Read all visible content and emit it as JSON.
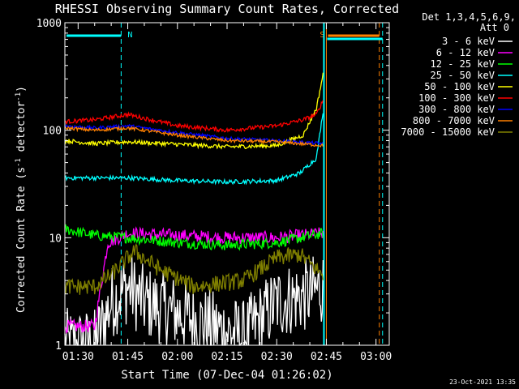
{
  "chart_data": {
    "type": "line",
    "title": "RHESSI Observing Summary Count Rates, Corrected",
    "xlabel": "Start Time (07-Dec-04 01:26:02)",
    "ylabel": "Corrected Count Rate (s",
    "ylabel_sup1": "-1",
    "ylabel_mid": " detector",
    "ylabel_sup2": "-1",
    "ylabel_end": ")",
    "y_scale": "log",
    "ylim": [
      1,
      1000
    ],
    "x_range_minutes": [
      "01:26",
      "03:04"
    ],
    "x_ticks": [
      "01:30",
      "01:45",
      "02:00",
      "02:15",
      "02:30",
      "02:45",
      "03:00"
    ],
    "y_ticks": [
      "1",
      "10",
      "100",
      "1000"
    ],
    "legend_header": [
      "Det 1,3,4,5,6,9,",
      "Att 0"
    ],
    "legend_position": "right",
    "series": [
      {
        "name": "3 - 6 keV",
        "color": "#ffffff",
        "ref": "black",
        "points": [
          [
            "01:26",
            1.0
          ],
          [
            "01:35",
            1.0
          ],
          [
            "01:40",
            2.5
          ],
          [
            "01:45",
            3.5
          ],
          [
            "01:50",
            2.5
          ],
          [
            "02:00",
            2.0
          ],
          [
            "02:10",
            1.5
          ],
          [
            "02:20",
            1.2
          ],
          [
            "02:30",
            2.5
          ],
          [
            "02:40",
            3.0
          ],
          [
            "02:44",
            3.5
          ]
        ]
      },
      {
        "name": "6 - 12 keV",
        "color": "#ff00ff",
        "points": [
          [
            "01:26",
            1.5
          ],
          [
            "01:35",
            1.5
          ],
          [
            "01:39",
            9.0
          ],
          [
            "01:45",
            11.0
          ],
          [
            "02:00",
            10.5
          ],
          [
            "02:15",
            10.0
          ],
          [
            "02:30",
            10.0
          ],
          [
            "02:44",
            11.0
          ]
        ]
      },
      {
        "name": "12 - 25 keV",
        "color": "#00ff00",
        "points": [
          [
            "01:26",
            12.0
          ],
          [
            "01:35",
            10.5
          ],
          [
            "01:45",
            10.0
          ],
          [
            "02:00",
            9.0
          ],
          [
            "02:15",
            8.5
          ],
          [
            "02:30",
            9.0
          ],
          [
            "02:44",
            11.0
          ]
        ]
      },
      {
        "name": "25 - 50 keV",
        "color": "#00ffff",
        "points": [
          [
            "01:26",
            36
          ],
          [
            "01:35",
            36
          ],
          [
            "01:45",
            36
          ],
          [
            "02:00",
            34
          ],
          [
            "02:15",
            33
          ],
          [
            "02:30",
            34
          ],
          [
            "02:37",
            40
          ],
          [
            "02:42",
            55
          ],
          [
            "02:44",
            150
          ]
        ]
      },
      {
        "name": "50 - 100 keV",
        "color": "#ffff00",
        "points": [
          [
            "01:26",
            80
          ],
          [
            "01:35",
            75
          ],
          [
            "01:45",
            78
          ],
          [
            "02:00",
            74
          ],
          [
            "02:15",
            70
          ],
          [
            "02:30",
            72
          ],
          [
            "02:38",
            90
          ],
          [
            "02:42",
            160
          ],
          [
            "02:44",
            330
          ]
        ]
      },
      {
        "name": "100 - 300 keV",
        "color": "#ff0000",
        "points": [
          [
            "01:26",
            120
          ],
          [
            "01:35",
            125
          ],
          [
            "01:45",
            140
          ],
          [
            "01:52",
            125
          ],
          [
            "02:00",
            110
          ],
          [
            "02:15",
            100
          ],
          [
            "02:30",
            110
          ],
          [
            "02:38",
            125
          ],
          [
            "02:42",
            140
          ],
          [
            "02:44",
            190
          ]
        ]
      },
      {
        "name": "300 - 800 keV",
        "color": "#0000ff",
        "points": [
          [
            "01:26",
            110
          ],
          [
            "01:35",
            105
          ],
          [
            "01:45",
            110
          ],
          [
            "02:00",
            95
          ],
          [
            "02:15",
            84
          ],
          [
            "02:30",
            80
          ],
          [
            "02:44",
            75
          ]
        ]
      },
      {
        "name": "800 - 7000 keV",
        "color": "#ff8000",
        "points": [
          [
            "01:26",
            105
          ],
          [
            "01:35",
            100
          ],
          [
            "01:45",
            105
          ],
          [
            "02:00",
            90
          ],
          [
            "02:15",
            80
          ],
          [
            "02:30",
            78
          ],
          [
            "02:44",
            72
          ]
        ]
      },
      {
        "name": "7000 - 15000 keV",
        "color": "#808000",
        "points": [
          [
            "01:26",
            3.5
          ],
          [
            "01:35",
            3.5
          ],
          [
            "01:40",
            4.5
          ],
          [
            "01:47",
            7.5
          ],
          [
            "01:55",
            5.0
          ],
          [
            "02:05",
            3.5
          ],
          [
            "02:20",
            4.0
          ],
          [
            "02:30",
            6.5
          ],
          [
            "02:37",
            7.0
          ],
          [
            "02:44",
            4.5
          ]
        ]
      }
    ],
    "annotations": [
      {
        "label": "N",
        "color": "#00ffff",
        "x_start": "01:26",
        "x_end": "01:43"
      },
      {
        "label": "S",
        "color": "#ff8000",
        "x_start": "02:45",
        "x_end": "03:01"
      }
    ],
    "timestamp": "23-Oct-2021 13:35"
  }
}
